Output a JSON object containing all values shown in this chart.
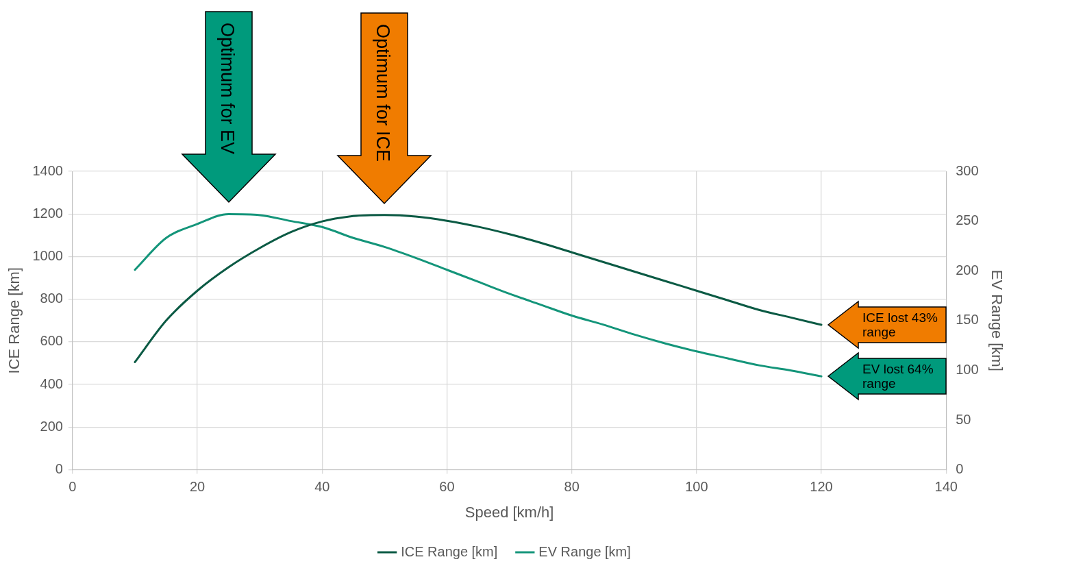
{
  "chart_data": {
    "type": "line",
    "xlabel": "Speed [km/h]",
    "ylabel": "ICE Range [km]",
    "y2label": "EV Range [km]",
    "xlim": [
      0,
      140
    ],
    "xticks": [
      0,
      20,
      40,
      60,
      80,
      100,
      120,
      140
    ],
    "ylim": [
      0,
      1400
    ],
    "yticks": [
      0,
      200,
      400,
      600,
      800,
      1000,
      1200,
      1400
    ],
    "y2lim": [
      0,
      300
    ],
    "y2ticks": [
      0,
      50,
      100,
      150,
      200,
      250,
      300
    ],
    "grid": true,
    "legend": "bottom",
    "marker": "none",
    "line_style": "solid",
    "x": [
      10,
      15,
      20,
      25,
      30,
      35,
      40,
      45,
      50,
      55,
      60,
      65,
      70,
      75,
      80,
      85,
      90,
      95,
      100,
      105,
      110,
      115,
      120
    ],
    "series": [
      {
        "name": "ICE Range [km]",
        "color": "#0b5a44",
        "values": [
          505,
          700,
          840,
          950,
          1040,
          1115,
          1165,
          1190,
          1195,
          1188,
          1168,
          1140,
          1105,
          1065,
          1020,
          975,
          930,
          885,
          840,
          795,
          750,
          715,
          680
        ]
      },
      {
        "name": "EV Range [km]",
        "color": "#14957a",
        "axis": "y2",
        "values": [
          201,
          233,
          247,
          257,
          256,
          250,
          244,
          233,
          224,
          213,
          201,
          189,
          177,
          166,
          155,
          146,
          136,
          127,
          119,
          112,
          105,
          100,
          94
        ]
      }
    ],
    "annotations": [
      "Optimum for EV",
      "Optimum for ICE",
      "ICE lost 43% range",
      "EV lost 64% range"
    ]
  }
}
